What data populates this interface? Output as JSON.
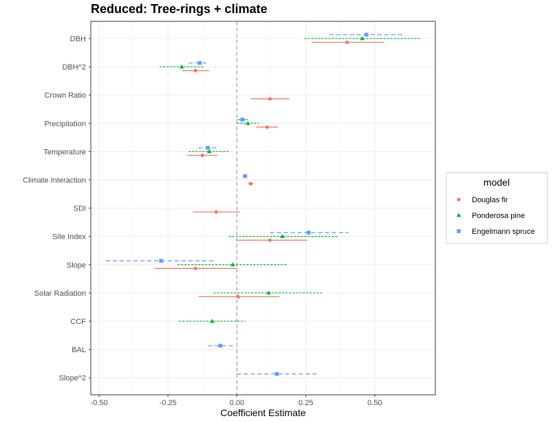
{
  "chart_data": {
    "type": "scatter",
    "title": "Reduced: Tree-rings + climate",
    "xlabel": "Coefficient Estimate",
    "ylabel": "",
    "xlim": [
      -0.53,
      0.72
    ],
    "x_ticks": [
      -0.5,
      -0.25,
      0.0,
      0.25,
      0.5
    ],
    "x_tick_labels": [
      "-0.50",
      "-0.25",
      "0.00",
      "0.25",
      "0.50"
    ],
    "reference_line_x": 0,
    "grid": true,
    "categories": [
      "DBH",
      "DBH^2",
      "Crown Ratio",
      "Precipitation",
      "Temperature",
      "Climate Interaction",
      "SDI",
      "Site Index",
      "Slope",
      "Solar Radiation",
      "CCF",
      "BAL",
      "Slope^2"
    ],
    "legend": {
      "title": "model",
      "position": "right"
    },
    "series": [
      {
        "name": "Douglas fir",
        "color": "#f8766d",
        "marker": "circle",
        "line": "solid",
        "points": [
          {
            "category": "DBH",
            "estimate": 0.4,
            "lower": 0.27,
            "upper": 0.535
          },
          {
            "category": "DBH^2",
            "estimate": -0.15,
            "lower": -0.2,
            "upper": -0.1
          },
          {
            "category": "Crown Ratio",
            "estimate": 0.12,
            "lower": 0.05,
            "upper": 0.19
          },
          {
            "category": "Precipitation",
            "estimate": 0.11,
            "lower": 0.07,
            "upper": 0.15
          },
          {
            "category": "Temperature",
            "estimate": -0.125,
            "lower": -0.18,
            "upper": -0.07
          },
          {
            "category": "Climate Interaction",
            "estimate": 0.05,
            "lower": 0.04,
            "upper": 0.06
          },
          {
            "category": "SDI",
            "estimate": -0.075,
            "lower": -0.16,
            "upper": 0.01
          },
          {
            "category": "Site Index",
            "estimate": 0.12,
            "lower": 0.0,
            "upper": 0.255
          },
          {
            "category": "Slope",
            "estimate": -0.15,
            "lower": -0.3,
            "upper": 0.0
          },
          {
            "category": "Solar Radiation",
            "estimate": 0.005,
            "lower": -0.14,
            "upper": 0.155
          }
        ]
      },
      {
        "name": "Ponderosa pine",
        "color": "#00ba38",
        "marker": "triangle",
        "line": "dotted",
        "points": [
          {
            "category": "DBH",
            "estimate": 0.455,
            "lower": 0.245,
            "upper": 0.665
          },
          {
            "category": "DBH^2",
            "estimate": -0.2,
            "lower": -0.28,
            "upper": -0.12
          },
          {
            "category": "Precipitation",
            "estimate": 0.04,
            "lower": 0.0,
            "upper": 0.08
          },
          {
            "category": "Temperature",
            "estimate": -0.1,
            "lower": -0.175,
            "upper": -0.03
          },
          {
            "category": "Site Index",
            "estimate": 0.165,
            "lower": -0.03,
            "upper": 0.365
          },
          {
            "category": "Slope",
            "estimate": -0.015,
            "lower": -0.215,
            "upper": 0.18
          },
          {
            "category": "Solar Radiation",
            "estimate": 0.115,
            "lower": -0.085,
            "upper": 0.31
          },
          {
            "category": "CCF",
            "estimate": -0.09,
            "lower": -0.21,
            "upper": 0.03
          }
        ]
      },
      {
        "name": "Engelmann spruce",
        "color": "#619cff",
        "marker": "square",
        "line": "dashed",
        "points": [
          {
            "category": "DBH",
            "estimate": 0.47,
            "lower": 0.335,
            "upper": 0.6
          },
          {
            "category": "DBH^2",
            "estimate": -0.135,
            "lower": -0.175,
            "upper": -0.1
          },
          {
            "category": "Precipitation",
            "estimate": 0.02,
            "lower": 0.0,
            "upper": 0.04
          },
          {
            "category": "Temperature",
            "estimate": -0.105,
            "lower": -0.14,
            "upper": -0.07
          },
          {
            "category": "Climate Interaction",
            "estimate": 0.03,
            "lower": 0.02,
            "upper": 0.045
          },
          {
            "category": "Site Index",
            "estimate": 0.26,
            "lower": 0.12,
            "upper": 0.405
          },
          {
            "category": "Slope",
            "estimate": -0.275,
            "lower": -0.475,
            "upper": -0.075
          },
          {
            "category": "BAL",
            "estimate": -0.06,
            "lower": -0.105,
            "upper": -0.015
          },
          {
            "category": "Slope^2",
            "estimate": 0.145,
            "lower": 0.0,
            "upper": 0.295
          }
        ]
      }
    ]
  }
}
